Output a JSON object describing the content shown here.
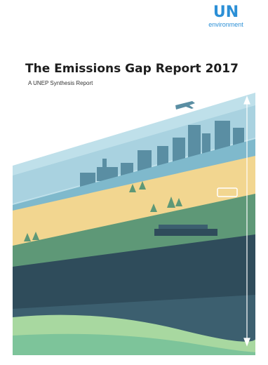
{
  "logo": {
    "main": "UN",
    "sub": "environment"
  },
  "report": {
    "title": "The Emissions Gap Report 2017",
    "subtitle": "A UNEP Synthesis Report"
  },
  "colors": {
    "sky": "#bfe0ea",
    "sky_band": "#7fb9cc",
    "city": "#5a8ea3",
    "yellow": "#f2d690",
    "green": "#5e9877",
    "deep": "#2f4c5b",
    "deep_light": "#3c5f6f",
    "meadow": "#7dc49a",
    "meadow_light": "#a8d8a0",
    "title_text": "#1d1d1d",
    "logo_blue": "#2b8fd6"
  }
}
